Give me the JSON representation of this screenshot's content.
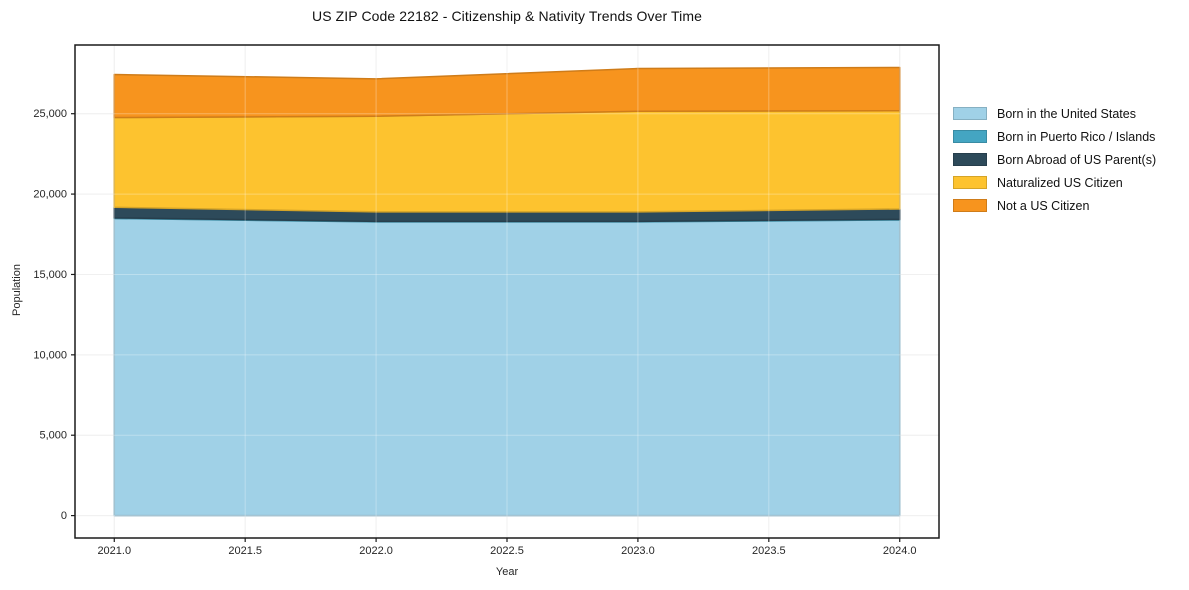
{
  "chart_data": {
    "type": "area",
    "stacked": true,
    "title": "US ZIP Code 22182 - Citizenship & Nativity Trends Over Time",
    "xlabel": "Year",
    "ylabel": "Population",
    "x": [
      2021,
      2022,
      2023,
      2024
    ],
    "series": [
      {
        "name": "Born in the United States",
        "color": "#a0d1e7",
        "values": [
          18480,
          18270,
          18270,
          18390
        ]
      },
      {
        "name": "Born in Puerto Rico / Islands",
        "color": "#44a5c2",
        "values": [
          40,
          35,
          35,
          40
        ]
      },
      {
        "name": "Born Abroad of US Parent(s)",
        "color": "#2d4a5a",
        "values": [
          660,
          585,
          590,
          645
        ]
      },
      {
        "name": "Naturalized US Citizen",
        "color": "#fdc32f",
        "values": [
          5580,
          5950,
          6260,
          6110
        ]
      },
      {
        "name": "Not a US Citizen",
        "color": "#f7941e",
        "values": [
          2680,
          2330,
          2655,
          2690
        ]
      }
    ],
    "totals": [
      27440,
      27170,
      27810,
      27875
    ],
    "x_ticks": [
      2021.0,
      2021.5,
      2022.0,
      2022.5,
      2023.0,
      2023.5,
      2024.0
    ],
    "x_tick_labels": [
      "2021.0",
      "2021.5",
      "2022.0",
      "2022.5",
      "2023.0",
      "2023.5",
      "2024.0"
    ],
    "y_ticks": [
      0,
      5000,
      10000,
      15000,
      20000,
      25000
    ],
    "y_tick_labels": [
      "0",
      "5,000",
      "10,000",
      "15,000",
      "20,000",
      "25,000"
    ],
    "xlim": [
      2020.85,
      2024.15
    ],
    "ylim": [
      -1394,
      29274
    ],
    "grid": true,
    "legend_position": "right",
    "colors": {
      "spine": "#1a1a1a",
      "tick_label": "#262626",
      "grid_under": "#eaeaea",
      "grid_over": "rgba(255,255,255,0.30)"
    }
  }
}
